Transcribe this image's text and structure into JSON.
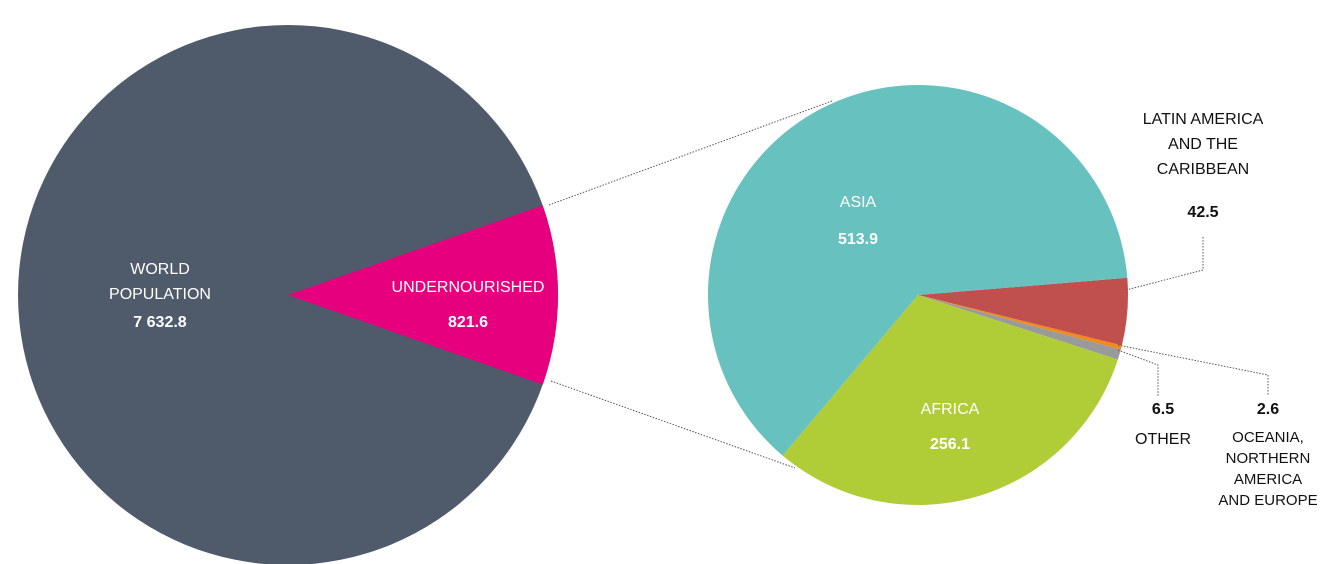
{
  "chart_data": [
    {
      "type": "pie",
      "categories": [
        "WORLD POPULATION",
        "UNDERNOURISHED"
      ],
      "values": [
        7632.8,
        821.6
      ],
      "value_labels": [
        "7 632.8",
        "821.6"
      ],
      "colors": [
        "#4f5b6b",
        "#e6007e"
      ]
    },
    {
      "type": "pie",
      "categories": [
        "LATIN AMERICA AND THE CARIBBEAN",
        "OCEANIA, NORTHERN AMERICA AND EUROPE",
        "OTHER",
        "AFRICA",
        "ASIA"
      ],
      "values": [
        42.5,
        2.6,
        6.5,
        256.1,
        513.9
      ],
      "colors": [
        "#c0504d",
        "#f08a1c",
        "#9a9a9a",
        "#b0cd38",
        "#67c1bf"
      ]
    }
  ]
}
